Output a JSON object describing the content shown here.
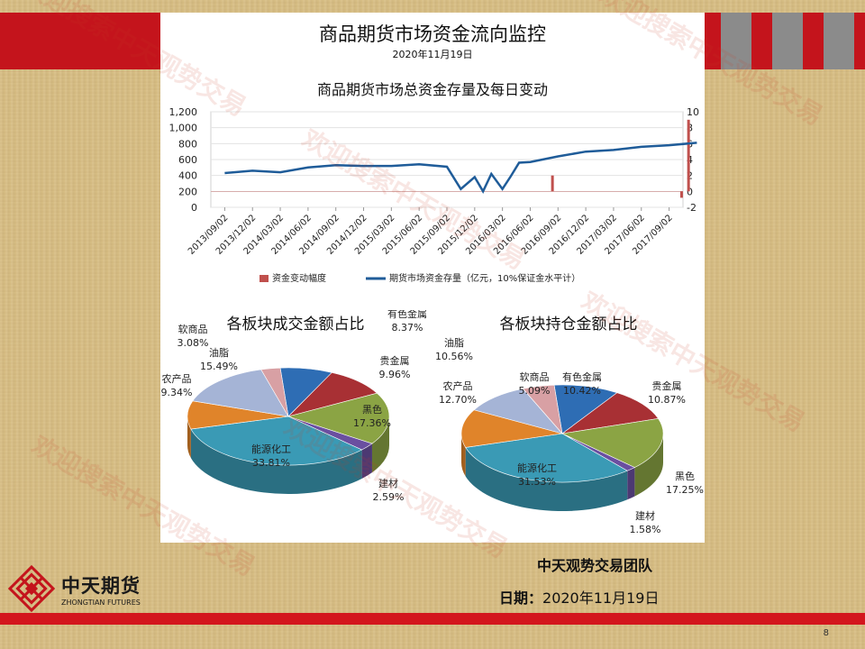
{
  "slide": {
    "title": "商品期货市场资金流向监控",
    "date": "2020年11月19日",
    "team": "中天观势交易团队",
    "date_label": "日期：",
    "date_value": "2020年11月19日",
    "page_number": "8",
    "watermark": "欢迎搜索中天观势交易",
    "logo": {
      "name_cn": "中天期货",
      "name_en": "ZHONGTIAN FUTURES"
    },
    "colors": {
      "band_red": "#c4141c",
      "background": "#d9bf86",
      "grey_blocks": "#8b8b8b"
    }
  },
  "chart_data": [
    {
      "type": "line",
      "title": "商品期货市场总资金存量及每日变动",
      "x_ticks": [
        "2013/09/02",
        "2013/12/02",
        "2014/03/02",
        "2014/06/02",
        "2014/09/02",
        "2014/12/02",
        "2015/03/02",
        "2015/06/02",
        "2015/09/02",
        "2015/12/02",
        "2016/03/02",
        "2016/06/02",
        "2016/09/02",
        "2016/12/02",
        "2017/03/02",
        "2017/06/02",
        "2017/09/02"
      ],
      "y_left_ticks": [
        "1,200",
        "1,000",
        "800",
        "600",
        "400",
        "200",
        "0"
      ],
      "y_left_range": [
        0,
        1200
      ],
      "y_right_ticks": [
        "10",
        "8",
        "6",
        "4",
        "2",
        "0",
        "-2"
      ],
      "y_right_range": [
        -2,
        10
      ],
      "grid": true,
      "legend_position": "bottom",
      "series": [
        {
          "name": "期货市场资金存量（亿元，10%保证金水平计）",
          "axis": "left",
          "color": "#1f5c99",
          "x_index": [
            0,
            1,
            2,
            3,
            4,
            5,
            6,
            7,
            8,
            8.5,
            9,
            9.3,
            9.6,
            10,
            10.3,
            10.6,
            11,
            12,
            13,
            14,
            15,
            16,
            17
          ],
          "values": [
            430,
            460,
            440,
            500,
            530,
            520,
            520,
            540,
            510,
            230,
            380,
            200,
            420,
            230,
            390,
            560,
            570,
            640,
            700,
            720,
            760,
            780,
            810
          ]
        },
        {
          "name": "资金变动幅度",
          "axis": "right",
          "type": "bar",
          "color": "#c0504d",
          "x_index": [
            11.8,
            16.45,
            16.7
          ],
          "values": [
            2.0,
            -0.8,
            9.0
          ]
        }
      ]
    },
    {
      "type": "pie",
      "title": "各板块成交金额占比",
      "categories": [
        "有色金属",
        "贵金属",
        "黑色",
        "建材",
        "能源化工",
        "农产品",
        "油脂",
        "软商品"
      ],
      "values": [
        8.37,
        9.96,
        17.36,
        2.59,
        33.81,
        9.34,
        15.49,
        3.08
      ],
      "labels": [
        "8.37%",
        "9.96%",
        "17.36%",
        "2.59%",
        "33.81%",
        "9.34%",
        "15.49%",
        "3.08%"
      ],
      "colors": [
        "#2e6db4",
        "#a83034",
        "#8ba444",
        "#6a4fa0",
        "#3a9ab5",
        "#e0842a",
        "#a5b4d6",
        "#d8a0a4"
      ]
    },
    {
      "type": "pie",
      "title": "各板块持仓金额占比",
      "categories": [
        "有色金属",
        "贵金属",
        "黑色",
        "建材",
        "能源化工",
        "农产品",
        "油脂",
        "软商品"
      ],
      "values": [
        10.42,
        10.87,
        17.25,
        1.58,
        31.53,
        12.7,
        10.56,
        5.09
      ],
      "labels": [
        "10.42%",
        "10.87%",
        "17.25%",
        "1.58%",
        "31.53%",
        "12.70%",
        "10.56%",
        "5.09%"
      ],
      "colors": [
        "#2e6db4",
        "#a83034",
        "#8ba444",
        "#6a4fa0",
        "#3a9ab5",
        "#e0842a",
        "#a5b4d6",
        "#d8a0a4"
      ]
    }
  ]
}
